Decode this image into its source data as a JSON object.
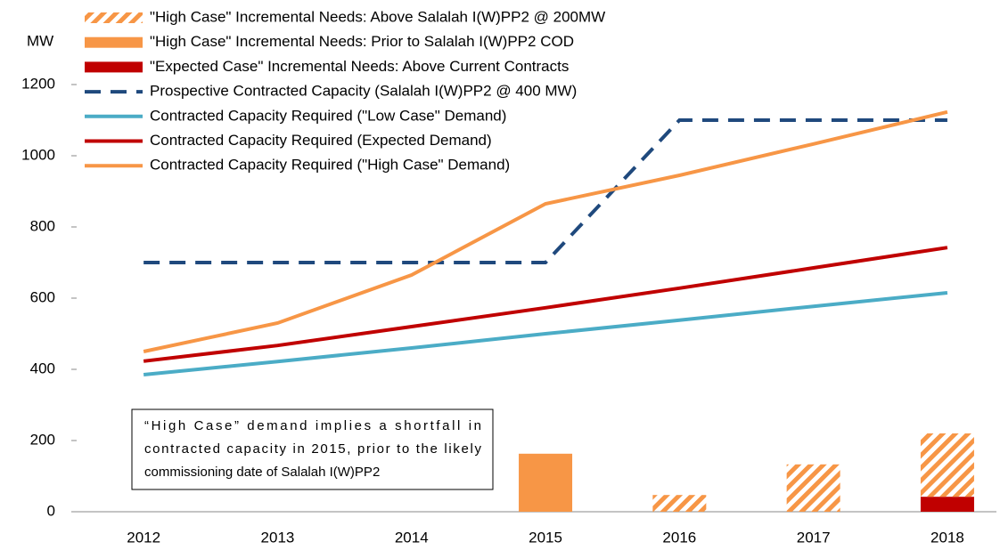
{
  "chart_data": {
    "type": "combo",
    "y_label": "MW",
    "categories": [
      "2012",
      "2013",
      "2014",
      "2015",
      "2016",
      "2017",
      "2018"
    ],
    "ylim": [
      0,
      1200
    ],
    "yticks": [
      0,
      200,
      400,
      600,
      800,
      1000,
      1200
    ],
    "legend": "top-left",
    "series": [
      {
        "name": "\"High Case\" Incremental Needs: Above Salalah I(W)PP2 @ 200MW",
        "color": "#f79646",
        "type": "bar",
        "pattern": "hatch",
        "values": [
          null,
          null,
          null,
          null,
          47,
          133,
          178
        ]
      },
      {
        "name": "\"High Case\" Incremental Needs: Prior to Salalah I(W)PP2 COD",
        "color": "#f79646",
        "type": "bar",
        "values": [
          null,
          null,
          null,
          163,
          null,
          null,
          null
        ]
      },
      {
        "name": "\"Expected Case\" Incremental Needs: Above Current Contracts",
        "color": "#c00000",
        "type": "bar",
        "values": [
          null,
          null,
          null,
          null,
          null,
          null,
          42
        ]
      },
      {
        "name": "Prospective Contracted Capacity (Salalah I(W)PP2 @ 400 MW)",
        "color": "#1f497d",
        "type": "line",
        "dash": true,
        "values": [
          700,
          700,
          700,
          700,
          1100,
          1100,
          1100
        ]
      },
      {
        "name": "Contracted Capacity Required (\"Low Case\" Demand)",
        "color": "#4bacc6",
        "type": "line",
        "values": [
          385,
          422,
          460,
          500,
          538,
          577,
          615
        ]
      },
      {
        "name": "Contracted Capacity Required (Expected Demand)",
        "color": "#c00000",
        "type": "line",
        "values": [
          423,
          467,
          520,
          573,
          628,
          685,
          742
        ]
      },
      {
        "name": "Contracted Capacity Required (\"High Case\" Demand)",
        "color": "#f79646",
        "type": "line",
        "values": [
          450,
          530,
          665,
          865,
          945,
          1033,
          1123
        ]
      }
    ],
    "annotation": [
      "“High Case” demand implies a shortfall in",
      "contracted capacity in 2015, prior to the likely",
      "commissioning date of Salalah I(W)PP2"
    ]
  }
}
